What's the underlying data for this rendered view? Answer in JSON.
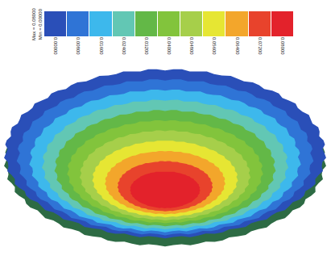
{
  "chart_data": {
    "type": "contour",
    "colorbar_ticks": [
      {
        "value": 0.0,
        "label": "0.00000"
      },
      {
        "value": 0.008,
        "label": "0.00800"
      },
      {
        "value": 0.016,
        "label": "0.01600"
      },
      {
        "value": 0.024,
        "label": "0.02400"
      },
      {
        "value": 0.032,
        "label": "0.03200"
      },
      {
        "value": 0.04,
        "label": "0.04000"
      },
      {
        "value": 0.048,
        "label": "0.04800"
      },
      {
        "value": 0.056,
        "label": "0.05600"
      },
      {
        "value": 0.064,
        "label": "0.06400"
      },
      {
        "value": 0.072,
        "label": "0.07200"
      },
      {
        "value": 0.08,
        "label": "0.08000"
      }
    ],
    "colors": [
      "#2a4fb8",
      "#2f74d6",
      "#3db8ec",
      "#62c7b4",
      "#63b847",
      "#82c43c",
      "#a6cf4a",
      "#e6e633",
      "#f3a62b",
      "#e8432c",
      "#e3222b"
    ],
    "annotations": [
      "Max = 0.08000",
      "Min = 0.00000"
    ]
  }
}
